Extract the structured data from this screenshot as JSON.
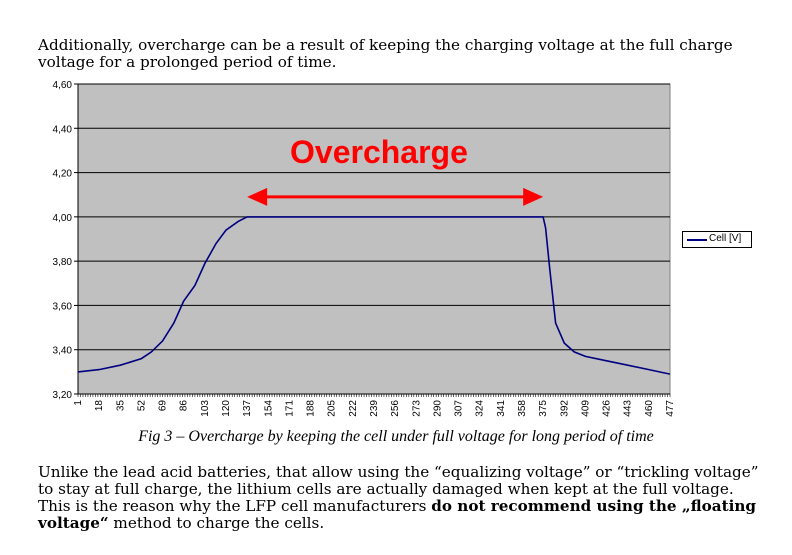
{
  "intro_text": "Additionally, overcharge can be a result of keeping the charging voltage at the full charge voltage for a prolonged period of time.",
  "caption": "Fig 3 – Overcharge by keeping the cell under full voltage for long period of time",
  "body_text": {
    "part1": "Unlike the lead acid batteries, that allow using the “equalizing voltage” or “trickling voltage” to stay at full charge, the lithium cells are actually damaged when kept at the full voltage. This is the reason why the LFP cell manufacturers ",
    "bold": "do not recommend using the „floating voltage“",
    "part2": " method to charge the cells."
  },
  "colors": {
    "plot_bg": "#c0c0c0",
    "series": "#000080",
    "annotation": "#ff0000"
  },
  "chart_data": {
    "type": "line",
    "title": "",
    "xlabel": "",
    "ylabel": "",
    "x_tick_labels": [
      "1",
      "18",
      "35",
      "52",
      "69",
      "86",
      "103",
      "120",
      "137",
      "154",
      "171",
      "188",
      "205",
      "222",
      "239",
      "256",
      "273",
      "290",
      "307",
      "324",
      "341",
      "358",
      "375",
      "392",
      "409",
      "426",
      "443",
      "460",
      "477"
    ],
    "xlim": [
      1,
      477
    ],
    "ylim": [
      3.2,
      4.6
    ],
    "y_ticks": [
      "3,20",
      "3,40",
      "3,60",
      "3,80",
      "4,00",
      "4,20",
      "4,40",
      "4,60"
    ],
    "grid": "horizontal",
    "legend_position": "right",
    "series": [
      {
        "name": "Cell [V]",
        "x": [
          1,
          18,
          35,
          52,
          60,
          69,
          78,
          86,
          95,
          103,
          112,
          120,
          130,
          137,
          200,
          300,
          375,
          377,
          380,
          385,
          392,
          400,
          409,
          426,
          443,
          460,
          477
        ],
        "y": [
          3.3,
          3.31,
          3.33,
          3.36,
          3.39,
          3.44,
          3.52,
          3.62,
          3.69,
          3.79,
          3.88,
          3.94,
          3.98,
          4.0,
          4.0,
          4.0,
          4.0,
          3.95,
          3.78,
          3.52,
          3.43,
          3.39,
          3.37,
          3.35,
          3.33,
          3.31,
          3.29
        ]
      }
    ],
    "annotations": [
      {
        "text": "Overcharge",
        "type": "double-arrow",
        "x_from": 137,
        "x_to": 375,
        "y": 4.09
      }
    ]
  }
}
